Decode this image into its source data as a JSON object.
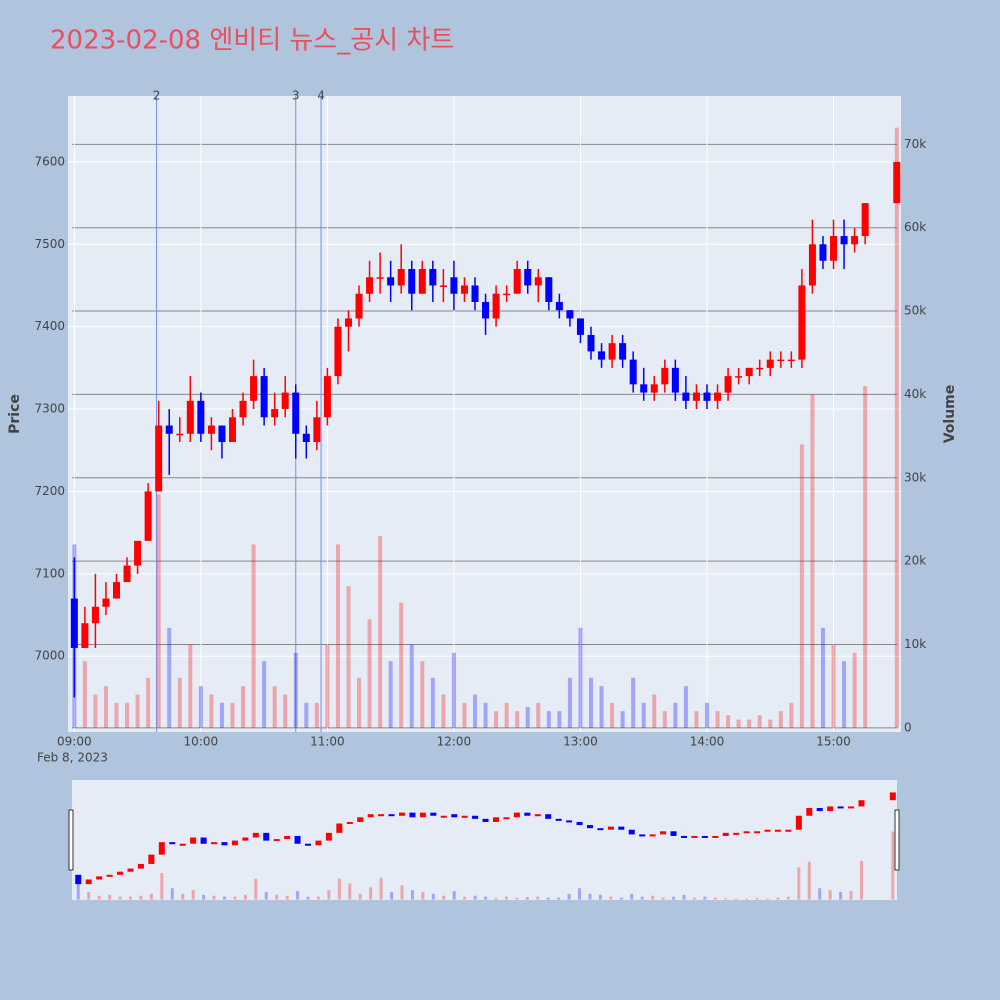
{
  "chart_data": {
    "type": "candlestick",
    "title": "2023-02-08 엔비티 뉴스_공시 차트",
    "y_label": "Price",
    "y2_label": "Volume",
    "date_label": "Feb 8, 2023",
    "increasing_color": "#ff0000",
    "decreasing_color": "#0000ff",
    "x": [
      "09:00",
      "09:05",
      "09:10",
      "09:15",
      "09:20",
      "09:25",
      "09:30",
      "09:35",
      "09:40",
      "09:45",
      "09:50",
      "09:55",
      "10:00",
      "10:05",
      "10:10",
      "10:15",
      "10:20",
      "10:25",
      "10:30",
      "10:35",
      "10:40",
      "10:45",
      "10:50",
      "10:55",
      "11:00",
      "11:05",
      "11:10",
      "11:15",
      "11:20",
      "11:25",
      "11:30",
      "11:35",
      "11:40",
      "11:45",
      "11:50",
      "11:55",
      "12:00",
      "12:05",
      "12:10",
      "12:15",
      "12:20",
      "12:25",
      "12:30",
      "12:35",
      "12:40",
      "12:45",
      "12:50",
      "12:55",
      "13:00",
      "13:05",
      "13:10",
      "13:15",
      "13:20",
      "13:25",
      "13:30",
      "13:35",
      "13:40",
      "13:45",
      "13:50",
      "13:55",
      "14:00",
      "14:05",
      "14:10",
      "14:15",
      "14:20",
      "14:25",
      "14:30",
      "14:35",
      "14:40",
      "14:45",
      "14:50",
      "14:55",
      "15:00",
      "15:05",
      "15:10",
      "15:15",
      "15:30"
    ],
    "open": [
      7070,
      7010,
      7040,
      7060,
      7070,
      7090,
      7110,
      7140,
      7200,
      7280,
      7270,
      7270,
      7310,
      7270,
      7280,
      7260,
      7290,
      7310,
      7340,
      7290,
      7300,
      7320,
      7270,
      7260,
      7290,
      7340,
      7400,
      7410,
      7440,
      7460,
      7460,
      7450,
      7470,
      7440,
      7470,
      7450,
      7460,
      7440,
      7450,
      7430,
      7410,
      7440,
      7440,
      7470,
      7450,
      7460,
      7430,
      7420,
      7410,
      7390,
      7370,
      7360,
      7380,
      7360,
      7330,
      7320,
      7330,
      7350,
      7320,
      7310,
      7320,
      7310,
      7320,
      7340,
      7340,
      7350,
      7350,
      7360,
      7360,
      7360,
      7450,
      7500,
      7480,
      7510,
      7500,
      7510,
      7550
    ],
    "high": [
      7120,
      7060,
      7100,
      7090,
      7100,
      7120,
      7140,
      7210,
      7310,
      7300,
      7290,
      7340,
      7320,
      7290,
      7280,
      7300,
      7320,
      7360,
      7350,
      7320,
      7340,
      7330,
      7280,
      7310,
      7350,
      7410,
      7420,
      7450,
      7480,
      7490,
      7480,
      7500,
      7480,
      7480,
      7480,
      7470,
      7480,
      7460,
      7460,
      7440,
      7450,
      7450,
      7480,
      7480,
      7470,
      7460,
      7440,
      7420,
      7410,
      7400,
      7380,
      7390,
      7390,
      7370,
      7350,
      7340,
      7360,
      7360,
      7340,
      7330,
      7330,
      7330,
      7350,
      7350,
      7350,
      7360,
      7370,
      7370,
      7370,
      7470,
      7530,
      7510,
      7530,
      7530,
      7520,
      7550,
      7600
    ],
    "low": [
      6950,
      7010,
      7010,
      7050,
      7070,
      7090,
      7100,
      7140,
      7200,
      7220,
      7260,
      7260,
      7260,
      7250,
      7240,
      7260,
      7280,
      7300,
      7280,
      7280,
      7290,
      7240,
      7240,
      7250,
      7280,
      7330,
      7370,
      7400,
      7430,
      7440,
      7430,
      7440,
      7420,
      7440,
      7430,
      7430,
      7420,
      7430,
      7420,
      7390,
      7400,
      7430,
      7440,
      7440,
      7430,
      7420,
      7410,
      7400,
      7380,
      7360,
      7350,
      7350,
      7350,
      7320,
      7310,
      7310,
      7320,
      7310,
      7300,
      7300,
      7300,
      7300,
      7310,
      7330,
      7330,
      7340,
      7340,
      7350,
      7350,
      7350,
      7440,
      7470,
      7470,
      7470,
      7490,
      7500,
      7550
    ],
    "close": [
      7010,
      7040,
      7060,
      7070,
      7090,
      7110,
      7140,
      7200,
      7280,
      7270,
      7270,
      7310,
      7270,
      7280,
      7260,
      7290,
      7310,
      7340,
      7290,
      7300,
      7320,
      7270,
      7260,
      7290,
      7340,
      7400,
      7410,
      7440,
      7460,
      7460,
      7450,
      7470,
      7440,
      7470,
      7450,
      7450,
      7440,
      7450,
      7430,
      7410,
      7440,
      7440,
      7470,
      7450,
      7460,
      7430,
      7420,
      7410,
      7390,
      7370,
      7360,
      7380,
      7360,
      7330,
      7320,
      7330,
      7350,
      7320,
      7310,
      7320,
      7310,
      7320,
      7340,
      7340,
      7350,
      7350,
      7360,
      7360,
      7360,
      7450,
      7500,
      7480,
      7510,
      7500,
      7510,
      7550,
      7600
    ],
    "volume": [
      22000,
      8000,
      4000,
      5000,
      3000,
      3000,
      4000,
      6000,
      28000,
      12000,
      6000,
      10000,
      5000,
      4000,
      3000,
      3000,
      5000,
      22000,
      8000,
      5000,
      4000,
      9000,
      3000,
      3000,
      10000,
      22000,
      17000,
      6000,
      13000,
      23000,
      8000,
      15000,
      10000,
      8000,
      6000,
      4000,
      9000,
      3000,
      4000,
      3000,
      2000,
      3000,
      2000,
      2500,
      3000,
      2000,
      2000,
      6000,
      12000,
      6000,
      5000,
      3000,
      2000,
      6000,
      3000,
      4000,
      2000,
      3000,
      5000,
      2000,
      3000,
      2000,
      1500,
      1000,
      1000,
      1500,
      1000,
      2000,
      3000,
      34000,
      40000,
      12000,
      10000,
      8000,
      9000,
      41000,
      72000
    ],
    "events": [
      {
        "x": "09:39",
        "label": "2"
      },
      {
        "x": "10:45",
        "label": "3"
      },
      {
        "x": "10:57",
        "label": "4"
      }
    ],
    "xlim": [
      "08:57",
      "15:32"
    ],
    "xticks": [
      "09:00",
      "10:00",
      "11:00",
      "12:00",
      "13:00",
      "14:00",
      "15:00"
    ],
    "ylim": [
      6908,
      7680
    ],
    "yticks": [
      7000,
      7100,
      7200,
      7300,
      7400,
      7500,
      7600
    ],
    "y2lim": [
      -500,
      75800
    ],
    "y2ticks": [
      0,
      {
        "value": 10000,
        "label": "10k"
      },
      {
        "value": 20000,
        "label": "20k"
      },
      {
        "value": 30000,
        "label": "30k"
      },
      {
        "value": 40000,
        "label": "40k"
      },
      {
        "value": 50000,
        "label": "50k"
      },
      {
        "value": 60000,
        "label": "60k"
      },
      {
        "value": 70000,
        "label": "70k"
      }
    ],
    "grid": true
  }
}
